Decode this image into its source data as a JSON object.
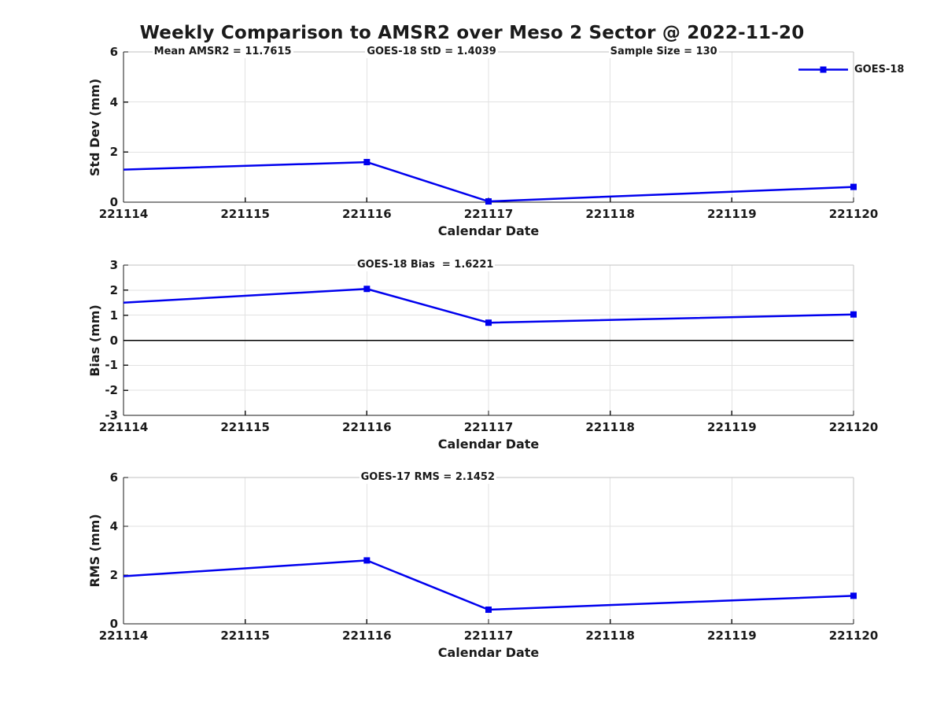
{
  "title": "Weekly Comparison to AMSR2 over Meso 2 Sector @ 2022-11-20",
  "legend": {
    "label": "GOES-18"
  },
  "colors": {
    "line": "#0000EE",
    "axis": "#1a1a1a",
    "grid": "#e2e2e2",
    "frame_light": "#c0c0c0",
    "zero_line": "#000000",
    "text": "#1a1a1a",
    "background": "#ffffff"
  },
  "chart_data": {
    "type": "line",
    "title": "Weekly Comparison to AMSR2 over Meso 2 Sector @ 2022-11-20",
    "x_label": "Calendar Date",
    "x_ticks": [
      "221114",
      "221115",
      "221116",
      "221117",
      "221118",
      "221119",
      "221120"
    ],
    "x_range": [
      221114,
      221120
    ],
    "grid": true,
    "legend": {
      "entries": [
        "GOES-18"
      ],
      "position": "top-right-outside",
      "marker": "filled-square"
    },
    "series_name": "GOES-18",
    "subplots": [
      {
        "name": "std_dev",
        "ylabel": "Std Dev (mm)",
        "ylim": [
          0,
          6
        ],
        "yticks": [
          0,
          2,
          4,
          6
        ],
        "zero_line": false,
        "points": [
          {
            "x": 221114,
            "y": 1.3,
            "marker": false
          },
          {
            "x": 221116,
            "y": 1.6,
            "marker": true
          },
          {
            "x": 221117,
            "y": 0.03,
            "marker": true
          },
          {
            "x": 221120,
            "y": 0.61,
            "marker": true
          }
        ],
        "annotations": [
          {
            "text": "Mean AMSR2 = 11.7615",
            "x": 221114.25
          },
          {
            "text": "GOES-18 StD = 1.4039",
            "x": 221116.0
          },
          {
            "text": "Sample Size = 130",
            "x": 221118.0
          }
        ]
      },
      {
        "name": "bias",
        "ylabel": "Bias (mm)",
        "ylim": [
          -3,
          3
        ],
        "yticks": [
          -3,
          -2,
          -1,
          0,
          1,
          2,
          3
        ],
        "zero_line": true,
        "points": [
          {
            "x": 221114,
            "y": 1.5,
            "marker": false
          },
          {
            "x": 221116,
            "y": 2.05,
            "marker": true
          },
          {
            "x": 221117,
            "y": 0.7,
            "marker": true
          },
          {
            "x": 221120,
            "y": 1.03,
            "marker": true
          }
        ],
        "annotations": [
          {
            "text": "GOES-18 Bias  = 1.6221",
            "x": 221115.92
          }
        ]
      },
      {
        "name": "rms",
        "ylabel": "RMS (mm)",
        "ylim": [
          0,
          6
        ],
        "yticks": [
          0,
          2,
          4,
          6
        ],
        "zero_line": false,
        "points": [
          {
            "x": 221114,
            "y": 1.95,
            "marker": false
          },
          {
            "x": 221116,
            "y": 2.6,
            "marker": true
          },
          {
            "x": 221117,
            "y": 0.58,
            "marker": true
          },
          {
            "x": 221120,
            "y": 1.15,
            "marker": true
          }
        ],
        "annotations": [
          {
            "text": "GOES-17 RMS = 2.1452",
            "x": 221115.95
          }
        ]
      }
    ]
  }
}
